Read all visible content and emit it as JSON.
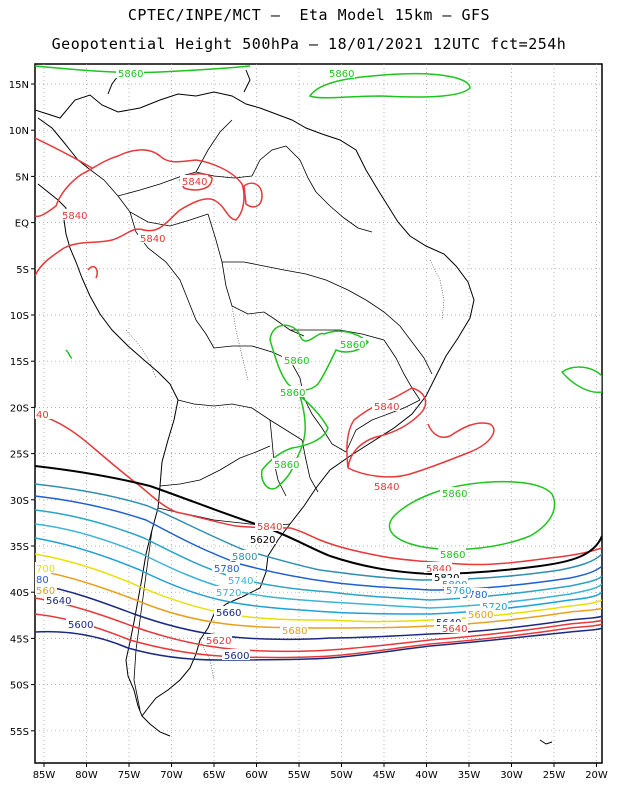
{
  "header": {
    "line1": "CPTEC/INPE/MCT –  Eta Model 15km – GFS",
    "line2": "Geopotential Height 500hPa – 18/01/2021 12UTC fct=254h"
  },
  "map": {
    "lon_ticks": [
      "85W",
      "80W",
      "75W",
      "70W",
      "65W",
      "60W",
      "55W",
      "50W",
      "45W",
      "40W",
      "35W",
      "30W",
      "25W",
      "20W"
    ],
    "lat_ticks": [
      "15N",
      "10N",
      "5N",
      "EQ",
      "5S",
      "10S",
      "15S",
      "20S",
      "25S",
      "30S",
      "35S",
      "40S",
      "45S",
      "50S",
      "55S"
    ],
    "contour_levels": [
      {
        "value": "5860",
        "color": "#1fc41f"
      },
      {
        "value": "5840",
        "color": "#e8383a"
      },
      {
        "value": "5820",
        "color": "#000000"
      },
      {
        "value": "5800",
        "color": "#2f8fb0"
      },
      {
        "value": "5780",
        "color": "#1f5fd0"
      },
      {
        "value": "5760",
        "color": "#2aa3c9"
      },
      {
        "value": "5740",
        "color": "#3db3d6"
      },
      {
        "value": "5720",
        "color": "#1fa0d8"
      },
      {
        "value": "5700",
        "color": "#e8e000"
      },
      {
        "value": "5680",
        "color": "#e8a020"
      },
      {
        "value": "5640",
        "color": "#e8383a"
      },
      {
        "value": "5620",
        "color": "#e8383a"
      },
      {
        "value": "5600",
        "color": "#1a2a80"
      }
    ],
    "labels": {
      "g5860_a": "5860",
      "g5860_b": "5860",
      "g5860_c": "5860",
      "g5860_d": "5860",
      "g5860_e": "5860",
      "g5860_f": "5860",
      "g5860_g": "5860",
      "g5860_h": "5860",
      "r5840_a": "5840",
      "r5840_b": "5840",
      "r5840_c": "5840",
      "r5840_d": "5840",
      "r5840_e": "5840",
      "r5840_f": "5840",
      "r5840_g": "5840",
      "r40": "40",
      "k5820_a": "5620",
      "k5820_b": "5820",
      "b5800_a": "5800",
      "b5800_b": "5800",
      "b5780_a": "5780",
      "b5780_b": "5780",
      "b5760": "5760",
      "b5740_a": "5740",
      "b5740_b": "5720",
      "b5720": "5720",
      "b5680": "80",
      "y5700": "700",
      "o5660": "5660",
      "o560": "560",
      "o5680": "5680",
      "r5640": "5640",
      "r5640_b": "5640",
      "r5620": "5620",
      "n5600_a": "5600",
      "n5600_b": "5600",
      "x5600_c": "5600",
      "x5640_c": "5640"
    }
  }
}
